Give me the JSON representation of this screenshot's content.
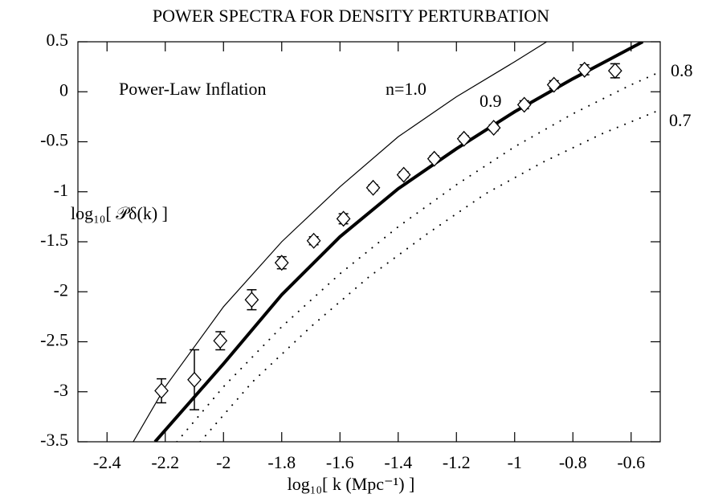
{
  "chart_data": {
    "type": "line",
    "title": "POWER SPECTRA FOR DENSITY PERTURBATION",
    "xlabel": "log₁₀[ k (Mpc⁻¹) ]",
    "ylabel": "log₁₀[ 𝒫δ(k) ]",
    "annotation": "Power-Law Inflation",
    "xlim": [
      -2.5,
      -0.5
    ],
    "ylim": [
      -3.5,
      0.5
    ],
    "xticks": [
      -2.4,
      -2.2,
      -2,
      -1.8,
      -1.6,
      -1.4,
      -1.2,
      -1,
      -0.8,
      -0.6
    ],
    "yticks": [
      0.5,
      0,
      -0.5,
      -1,
      -1.5,
      -2,
      -2.5,
      -3,
      -3.5
    ],
    "series": [
      {
        "name": "n=1.0",
        "color": "#000000",
        "style": "solid",
        "width": 1.2,
        "x": [
          -2.31,
          -2.2,
          -2.0,
          -1.8,
          -1.6,
          -1.4,
          -1.2,
          -1.0,
          -0.89
        ],
        "values": [
          -3.5,
          -2.95,
          -2.15,
          -1.5,
          -0.95,
          -0.45,
          -0.05,
          0.3,
          0.5
        ]
      },
      {
        "name": "0.9",
        "color": "#000000",
        "style": "solid",
        "width": 4,
        "x": [
          -2.235,
          -2.0,
          -1.8,
          -1.6,
          -1.4,
          -1.2,
          -1.0,
          -0.8,
          -0.56
        ],
        "values": [
          -3.5,
          -2.72,
          -2.03,
          -1.45,
          -0.97,
          -0.57,
          -0.2,
          0.13,
          0.5
        ]
      },
      {
        "name": "0.8",
        "color": "#000000",
        "style": "dotted",
        "width": 2,
        "x": [
          -2.16,
          -2.0,
          -1.8,
          -1.6,
          -1.4,
          -1.2,
          -1.0,
          -0.8,
          -0.6,
          -0.5
        ],
        "values": [
          -3.5,
          -2.95,
          -2.35,
          -1.82,
          -1.35,
          -0.93,
          -0.55,
          -0.22,
          0.07,
          0.2
        ]
      },
      {
        "name": "0.7",
        "color": "#000000",
        "style": "dotted",
        "width": 2,
        "x": [
          -2.08,
          -1.9,
          -1.7,
          -1.5,
          -1.3,
          -1.1,
          -0.9,
          -0.7,
          -0.5
        ],
        "values": [
          -3.5,
          -2.9,
          -2.35,
          -1.85,
          -1.42,
          -1.02,
          -0.7,
          -0.42,
          -0.18
        ]
      }
    ],
    "points": {
      "x": [
        -2.213,
        -2.1,
        -2.011,
        -1.903,
        -1.8,
        -1.69,
        -1.588,
        -1.486,
        -1.381,
        -1.276,
        -1.174,
        -1.072,
        -0.967,
        -0.865,
        -0.76,
        -0.655
      ],
      "values": [
        -2.99,
        -2.88,
        -2.49,
        -2.08,
        -1.71,
        -1.49,
        -1.27,
        -0.96,
        -0.83,
        -0.67,
        -0.47,
        -0.36,
        -0.13,
        0.07,
        0.22,
        0.21
      ],
      "errors": [
        0.12,
        0.3,
        0.09,
        0.1,
        0.06,
        0.04,
        0.05,
        0.03,
        0.03,
        0.03,
        0.03,
        0.03,
        0.04,
        0.04,
        0.05,
        0.07
      ]
    }
  }
}
